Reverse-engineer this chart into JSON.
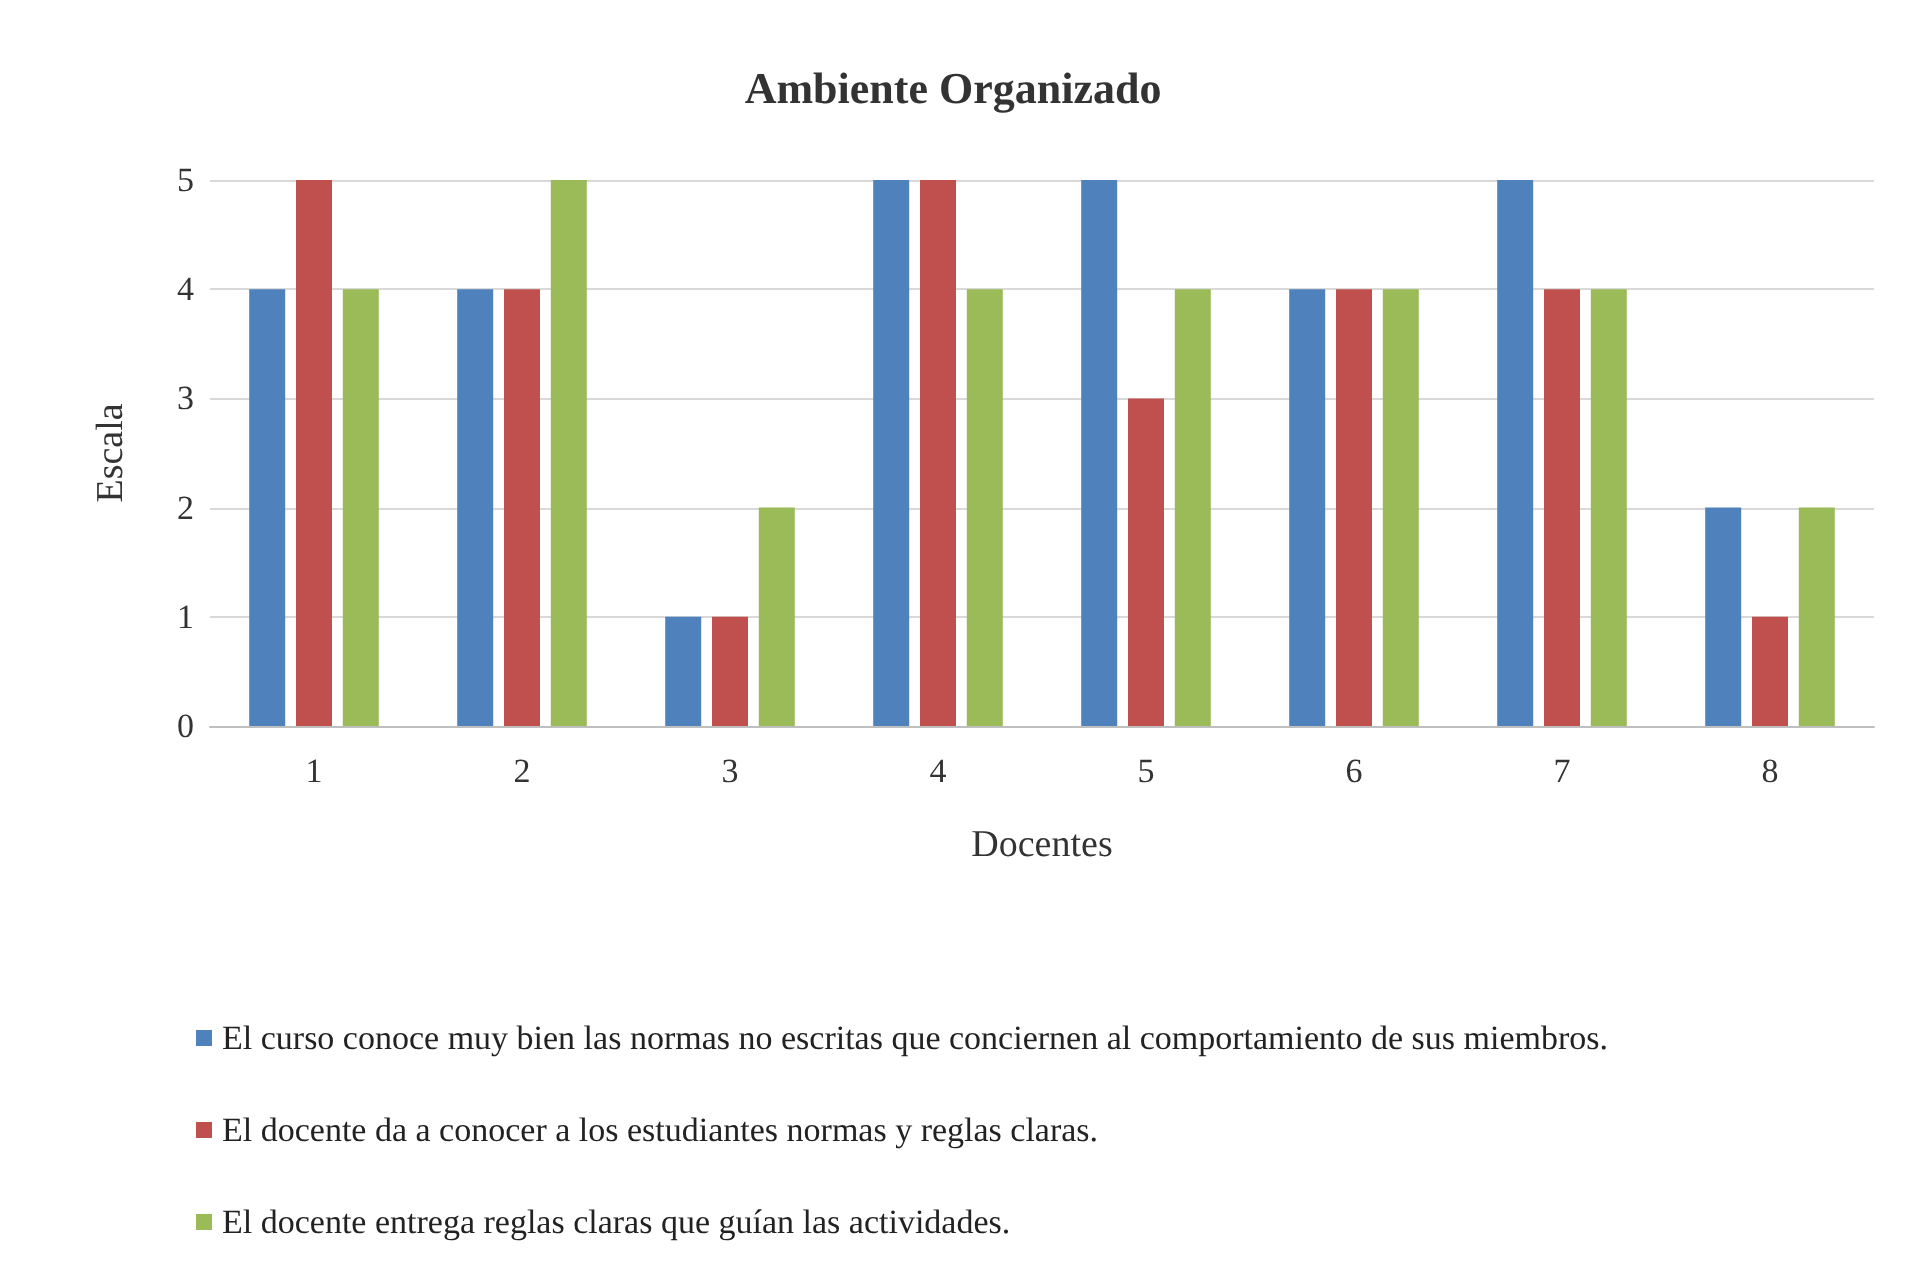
{
  "chart_data": {
    "type": "bar",
    "title": "Ambiente Organizado",
    "xlabel": "Docentes",
    "ylabel": "Escala",
    "categories": [
      "1",
      "2",
      "3",
      "4",
      "5",
      "6",
      "7",
      "8"
    ],
    "series": [
      {
        "name": "El curso conoce muy bien las normas no escritas que conciernen al comportamiento de sus miembros.",
        "color": "#4f81bd",
        "values": [
          4,
          4,
          1,
          5,
          5,
          4,
          5,
          2
        ]
      },
      {
        "name": "El docente da a conocer a los estudiantes normas y reglas claras.",
        "color": "#c0504d",
        "values": [
          5,
          4,
          1,
          5,
          3,
          4,
          4,
          1
        ]
      },
      {
        "name": "El docente entrega reglas claras que guían las actividades.",
        "color": "#9bbb59",
        "values": [
          4,
          5,
          2,
          4,
          4,
          4,
          4,
          2
        ]
      }
    ],
    "ylim": [
      0,
      5
    ],
    "yticks": [
      0,
      1,
      2,
      3,
      4,
      5
    ],
    "grid": "y",
    "legend": "bottom"
  }
}
